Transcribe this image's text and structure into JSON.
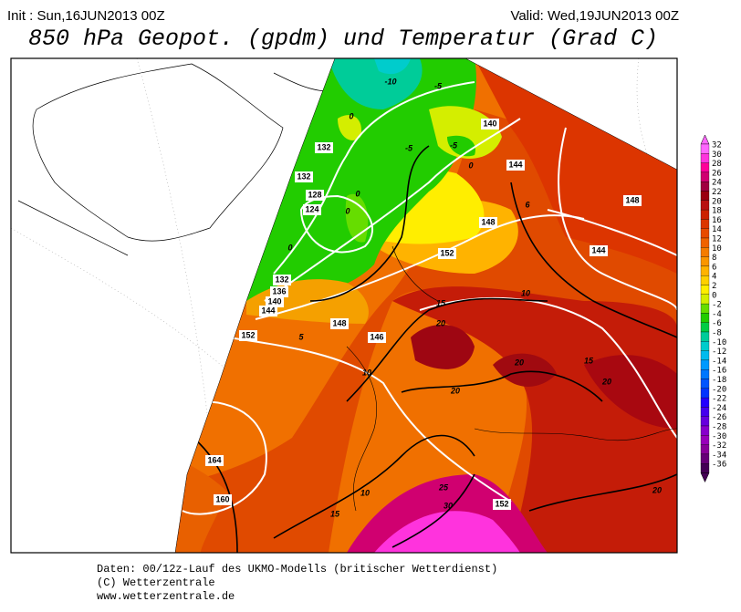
{
  "header": {
    "init": "Init : Sun,16JUN2013 00Z",
    "valid": "Valid: Wed,19JUN2013 00Z",
    "title": "850 hPa Geopot. (gpdm) und Temperatur (Grad C)"
  },
  "map": {
    "contour_labels": [
      "-10",
      "-5",
      "0",
      "132",
      "-5",
      "-5",
      "140",
      "0",
      "144",
      "132",
      "128",
      "0",
      "124",
      "0",
      "0",
      "148",
      "6",
      "148",
      "144",
      "152",
      "10",
      "132",
      "136",
      "140",
      "144",
      "15",
      "20",
      "148",
      "152",
      "5",
      "146",
      "10",
      "20",
      "15",
      "20",
      "20",
      "164",
      "160",
      "10",
      "25",
      "15",
      "152",
      "30",
      "20"
    ]
  },
  "colorbar": {
    "levels": [
      32,
      30,
      28,
      26,
      24,
      22,
      20,
      18,
      16,
      14,
      12,
      10,
      8,
      6,
      4,
      2,
      0,
      -2,
      -4,
      -6,
      -8,
      -10,
      -12,
      -14,
      -16,
      -18,
      -20,
      -22,
      -24,
      -26,
      -28,
      -30,
      -32,
      -34,
      -36
    ],
    "colors": [
      "#ff66ff",
      "#ff33dd",
      "#ff0099",
      "#d00070",
      "#a00040",
      "#9a0010",
      "#b81010",
      "#cc2200",
      "#dc3500",
      "#e84a00",
      "#f06200",
      "#f57c00",
      "#fa9600",
      "#ffb300",
      "#ffd000",
      "#ffee00",
      "#d4ee00",
      "#66dd00",
      "#22cc00",
      "#00cc44",
      "#00cc99",
      "#00cccc",
      "#00bbee",
      "#0099ff",
      "#0077ff",
      "#0055ff",
      "#0033ff",
      "#2200ff",
      "#4400ee",
      "#6600dd",
      "#8800cc",
      "#9900bb",
      "#880099",
      "#660077",
      "#440055"
    ]
  },
  "footer": {
    "line1": "Daten: 00/12z-Lauf des UKMO-Modells (britischer Wetterdienst)",
    "line2": "(C) Wetterzentrale",
    "line3": "www.wetterzentrale.de"
  }
}
